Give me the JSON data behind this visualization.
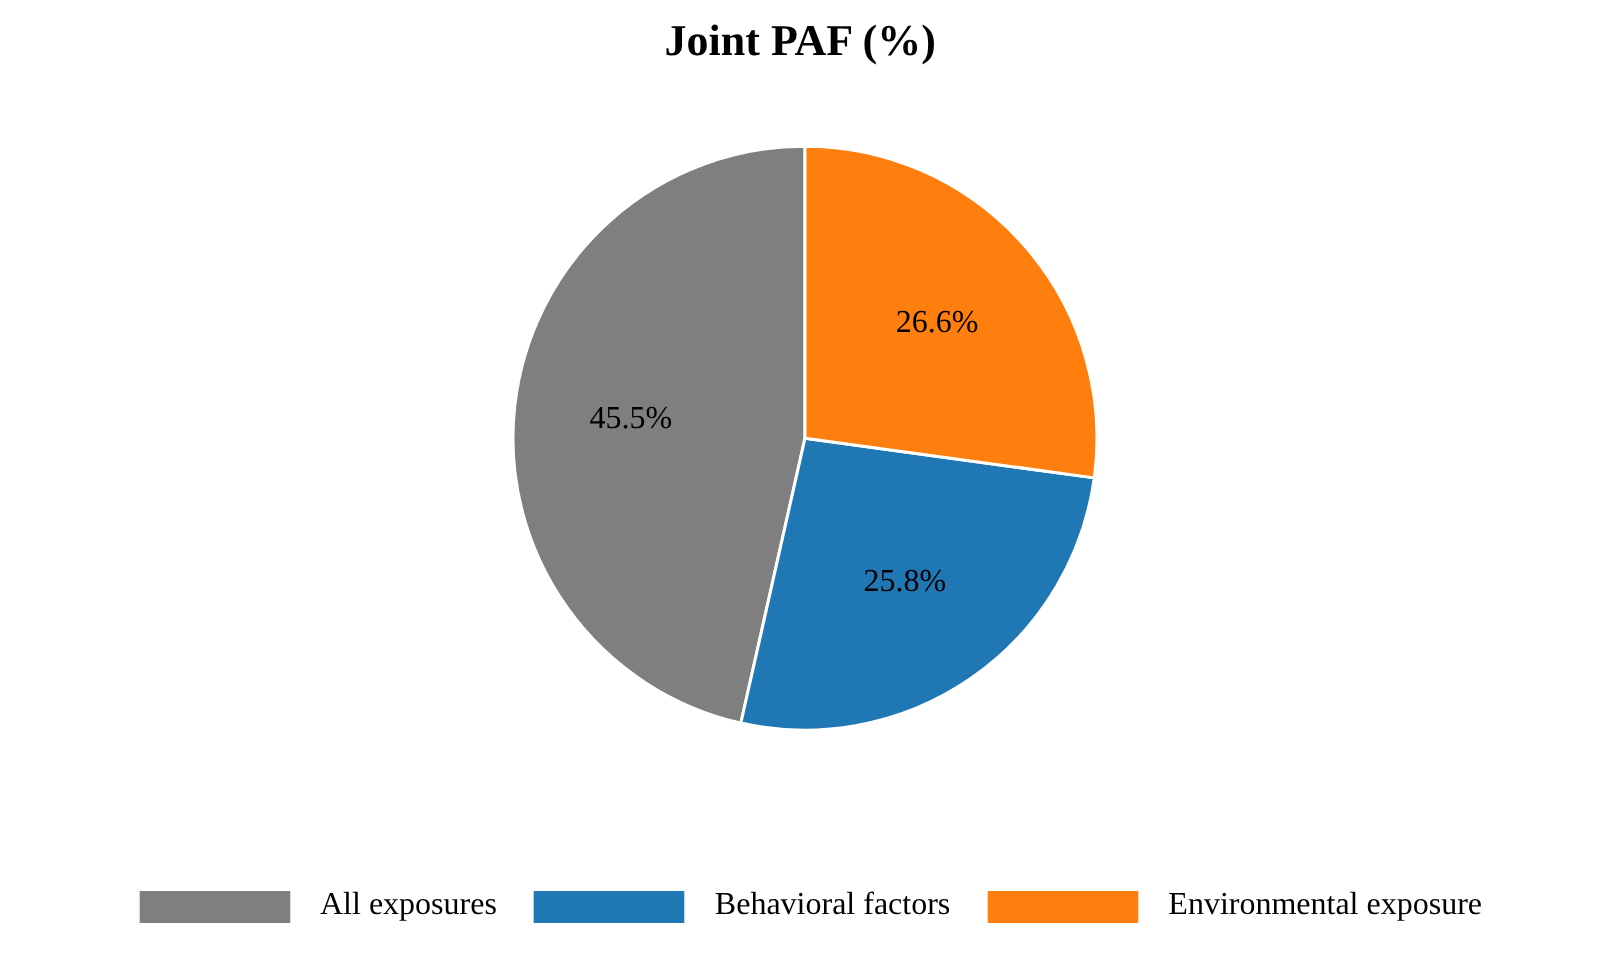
{
  "chart_data": {
    "type": "pie",
    "title": "Joint PAF (%)",
    "categories": [
      "All exposures",
      "Behavioral factors",
      "Environmental exposure"
    ],
    "values": [
      45.5,
      25.8,
      26.6
    ],
    "colors": [
      "#7f7f7f",
      "#1f77b4",
      "#ff7f0e"
    ],
    "value_labels": [
      "45.5%",
      "25.8%",
      "26.6%"
    ],
    "legend": "bottom"
  }
}
